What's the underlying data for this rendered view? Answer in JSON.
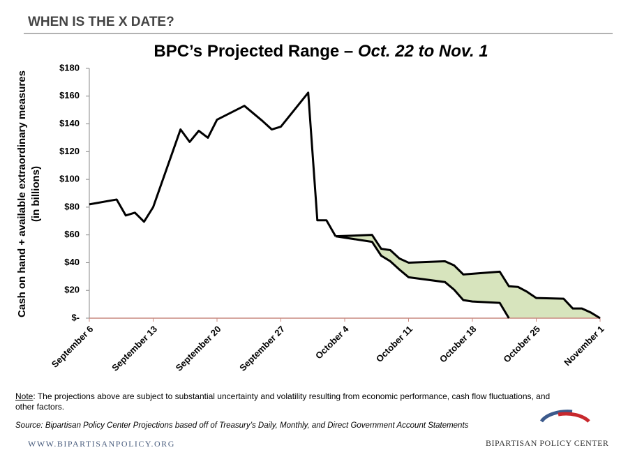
{
  "header": "WHEN IS THE X DATE?",
  "chart_data": {
    "type": "line",
    "title": "BPC’s Projected Range – ",
    "title_italic": "Oct. 22 to Nov. 1",
    "y_label": [
      "Cash on hand + available extraordinary measures",
      "(in billions)"
    ],
    "xlim": [
      0,
      56
    ],
    "xticks": [
      {
        "value": 0,
        "label": "September 6"
      },
      {
        "value": 7,
        "label": "September 13"
      },
      {
        "value": 14,
        "label": "September 20"
      },
      {
        "value": 21,
        "label": "September 27"
      },
      {
        "value": 28,
        "label": "October 4"
      },
      {
        "value": 35,
        "label": "October 11"
      },
      {
        "value": 42,
        "label": "October 18"
      },
      {
        "value": 49,
        "label": "October 25"
      },
      {
        "value": 56,
        "label": "November 1"
      }
    ],
    "ylim": [
      0,
      180
    ],
    "yticks": [
      {
        "value": 0,
        "label": "$-"
      },
      {
        "value": 20,
        "label": "$20"
      },
      {
        "value": 40,
        "label": "$40"
      },
      {
        "value": 60,
        "label": "$60"
      },
      {
        "value": 80,
        "label": "$80"
      },
      {
        "value": 100,
        "label": "$100"
      },
      {
        "value": 120,
        "label": "$120"
      },
      {
        "value": 140,
        "label": "$140"
      },
      {
        "value": 160,
        "label": "$160"
      },
      {
        "value": 180,
        "label": "$180"
      }
    ],
    "fill_color": "#d7e4bd",
    "series": [
      {
        "color": "#000000",
        "x": [
          0,
          3,
          4,
          5,
          6,
          7,
          10,
          11,
          12,
          13,
          14,
          17,
          19,
          20,
          21,
          24,
          25,
          26,
          27
        ],
        "values": [
          82,
          85.5,
          74,
          76,
          69.5,
          80,
          136,
          127,
          135,
          130,
          143,
          153,
          142,
          136,
          138,
          162.5,
          70.5,
          70.5,
          59
        ]
      },
      {
        "color": "#000000",
        "x": [
          27,
          31,
          32,
          33,
          34,
          35,
          39,
          40,
          41,
          45,
          46,
          47,
          48,
          49,
          52,
          53,
          54,
          55,
          56
        ],
        "values": [
          59,
          60,
          50,
          49,
          43,
          40,
          41,
          38,
          31.5,
          33.5,
          23,
          22.5,
          19,
          14.5,
          14,
          7,
          7,
          4,
          0
        ]
      },
      {
        "color": "#000000",
        "x": [
          27,
          31,
          32,
          33,
          34,
          35,
          39,
          40,
          41,
          42,
          45,
          46
        ],
        "values": [
          59,
          55,
          45,
          41,
          35,
          29.5,
          26,
          20.5,
          13,
          12,
          11,
          0
        ]
      }
    ]
  },
  "note_label": "Note",
  "note_text": ": The projections above are subject to substantial uncertainty and volatility resulting from economic performance, cash flow fluctuations, and other factors.",
  "source": "Source: Bipartisan Policy Center Projections based off of Treasury’s Daily, Monthly, and Direct Government Account Statements",
  "footer_url": "WWW.BIPARTISANPOLICY.ORG",
  "footer_org": "BIPARTISAN POLICY CENTER"
}
